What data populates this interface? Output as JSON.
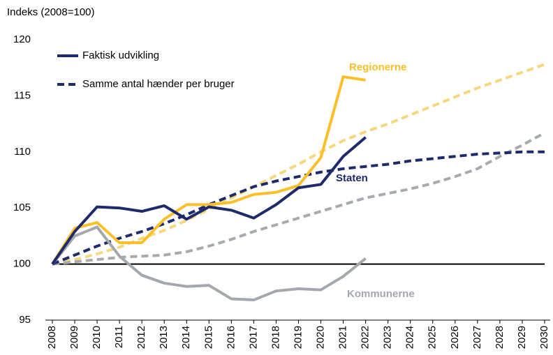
{
  "chart_data": {
    "type": "line",
    "y_label": "Indeks (2008=100)",
    "categories": [
      "2008",
      "2009",
      "2010",
      "2011",
      "2012",
      "2013",
      "2014",
      "2015",
      "2016",
      "2017",
      "2018",
      "2019",
      "2020",
      "2021",
      "2022",
      "2023",
      "2024",
      "2025",
      "2026",
      "2027",
      "2028",
      "2029",
      "2030"
    ],
    "ylim": [
      95,
      120
    ],
    "yticks": [
      95,
      100,
      105,
      110,
      115,
      120
    ],
    "grid": false,
    "baseline": 100,
    "legend": [
      {
        "label": "Faktisk udvikling",
        "color": "#1f2a6b",
        "style": "solid"
      },
      {
        "label": "Samme antal hænder per bruger",
        "color": "#1f2a6b",
        "style": "dashed"
      }
    ],
    "annotations": [
      {
        "text": "Regionerne",
        "color": "#fbbf2a"
      },
      {
        "text": "Staten",
        "color": "#1f2a6b"
      },
      {
        "text": "Kommunerne",
        "color": "#a4a8ad"
      }
    ],
    "series": [
      {
        "color": "#f7d77e",
        "style": "dashed",
        "values": [
          100,
          100.4,
          100.9,
          101.5,
          102.3,
          103.0,
          103.9,
          104.9,
          105.9,
          106.9,
          107.9,
          108.9,
          110.0,
          111.0,
          111.8,
          112.5,
          113.3,
          114.1,
          114.9,
          115.7,
          116.4,
          117.1,
          117.8
        ]
      },
      {
        "color": "#a7abb0",
        "style": "dashed",
        "values": [
          100,
          100.2,
          100.4,
          100.6,
          100.7,
          100.8,
          101.1,
          101.6,
          102.2,
          102.9,
          103.5,
          104.1,
          104.7,
          105.3,
          105.9,
          106.3,
          106.7,
          107.2,
          107.8,
          108.5,
          109.6,
          110.6,
          111.7
        ]
      },
      {
        "color": "#1f2a6b",
        "style": "dashed",
        "values": [
          100,
          100.8,
          101.6,
          102.3,
          102.9,
          103.6,
          104.4,
          105.3,
          106.1,
          106.9,
          107.4,
          107.8,
          108.2,
          108.5,
          108.7,
          108.9,
          109.2,
          109.4,
          109.6,
          109.8,
          109.9,
          110.0,
          110.0
        ]
      },
      {
        "color": "#a4a8ad",
        "style": "solid",
        "values": [
          100,
          102.5,
          103.3,
          100.7,
          99.0,
          98.3,
          98.0,
          98.1,
          96.9,
          96.8,
          97.6,
          97.8,
          97.7,
          98.9,
          100.5,
          null,
          null,
          null,
          null,
          null,
          null,
          null,
          null
        ]
      },
      {
        "color": "#fbbf2a",
        "style": "solid",
        "values": [
          100,
          103.2,
          103.7,
          101.9,
          101.9,
          104.0,
          105.3,
          105.3,
          105.5,
          106.2,
          106.4,
          107.0,
          109.5,
          116.7,
          116.4,
          null,
          null,
          null,
          null,
          null,
          null,
          null,
          null
        ]
      },
      {
        "color": "#1f2a6b",
        "style": "solid",
        "values": [
          100,
          102.9,
          105.1,
          105.0,
          104.7,
          105.2,
          104.0,
          105.1,
          104.8,
          104.1,
          105.3,
          106.8,
          107.1,
          109.6,
          111.3,
          null,
          null,
          null,
          null,
          null,
          null,
          null,
          null
        ]
      }
    ]
  }
}
